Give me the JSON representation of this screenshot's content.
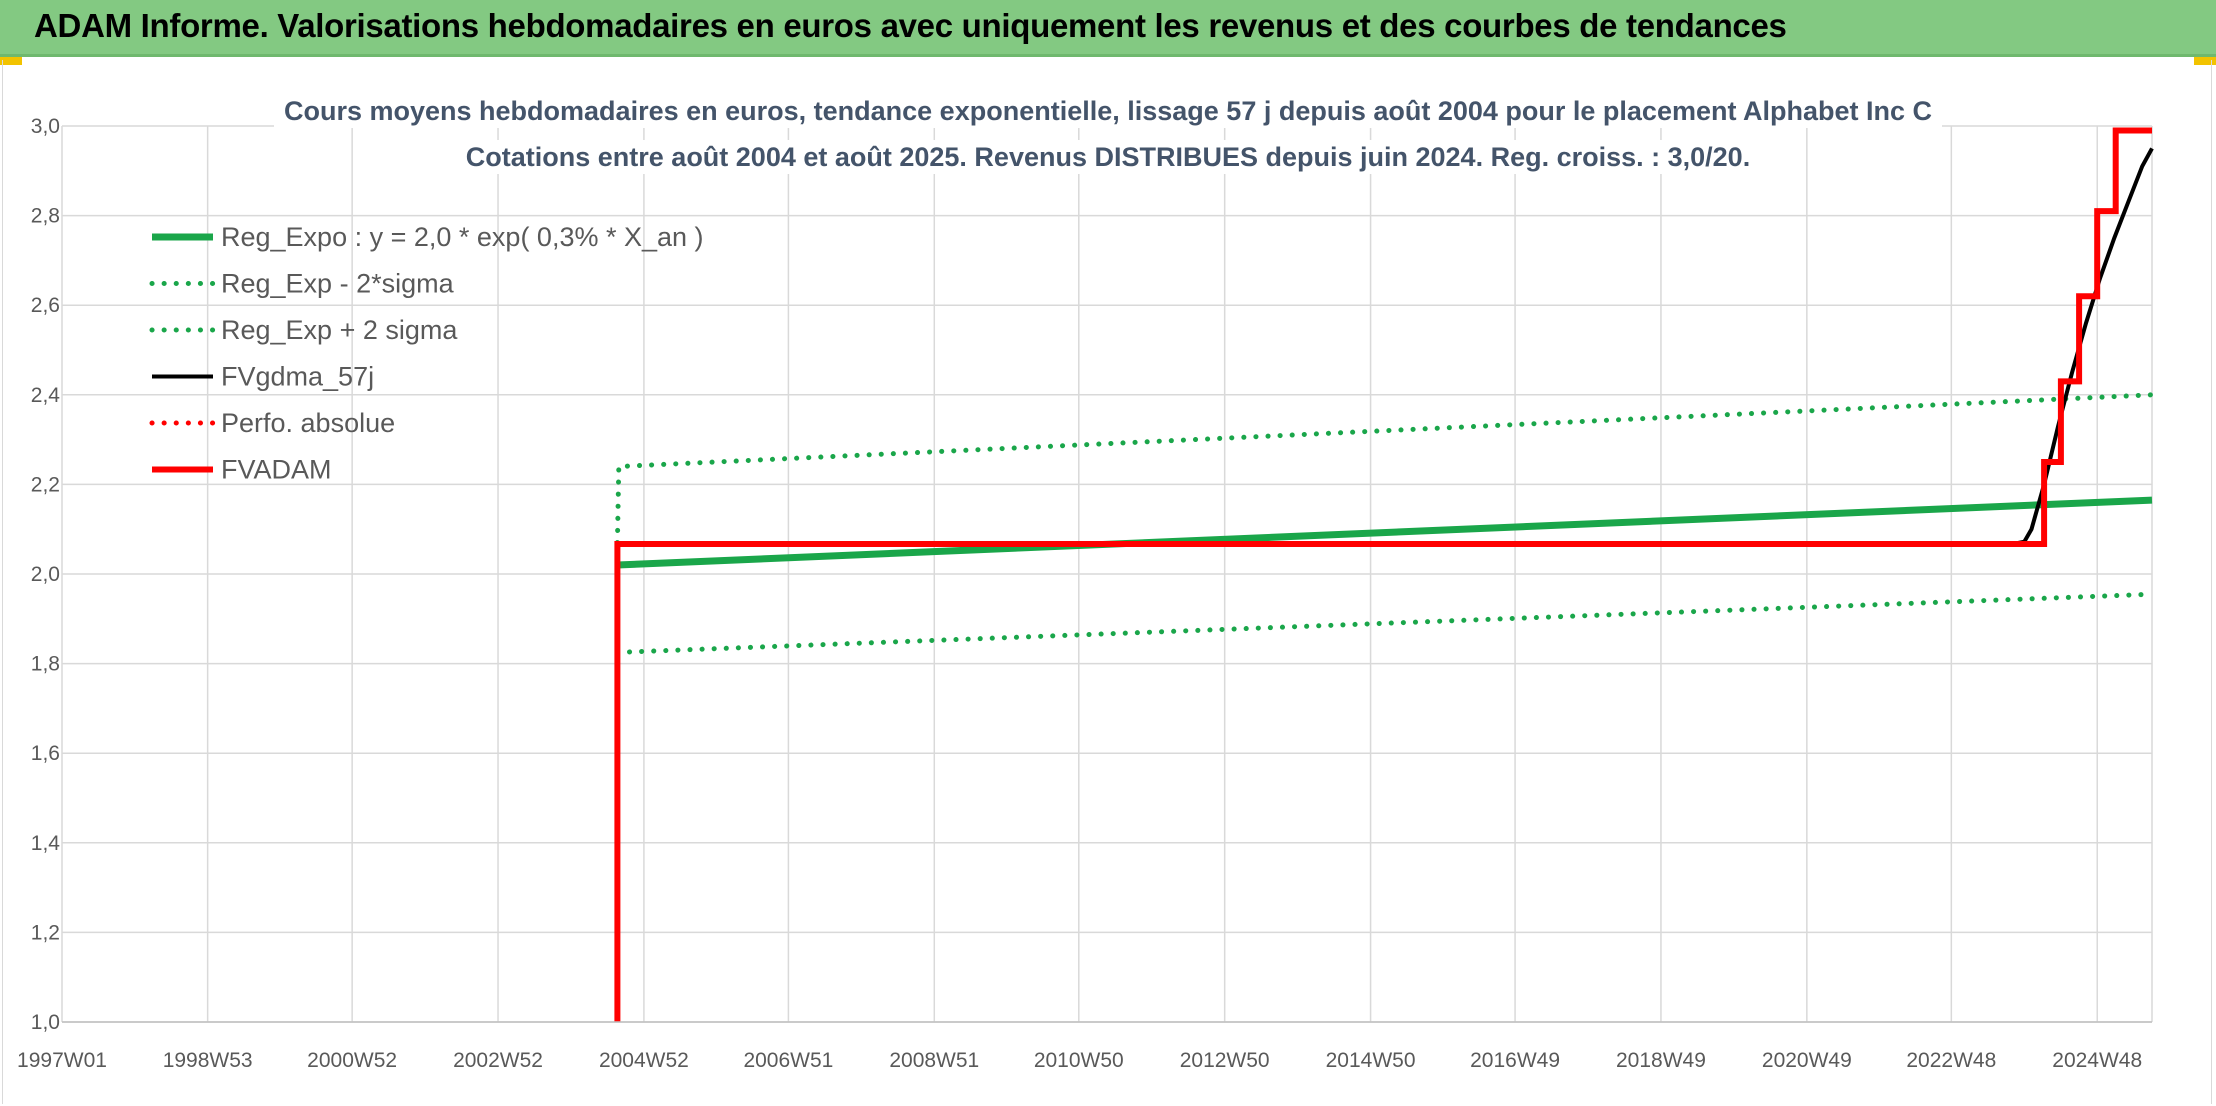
{
  "banner": {
    "title": "ADAM Informe. Valorisations hebdomadaires en euros avec uniquement les revenus et des courbes de tendances"
  },
  "colors": {
    "banner": "#83c982",
    "trend_green": "#1aa64a",
    "black": "#000000",
    "red": "#ff0000",
    "grid": "#d9d9d9"
  },
  "chart_data": {
    "type": "line",
    "title_line1": "Cours moyens hebdomadaires en euros, tendance exponentielle, lissage 57 j depuis août 2004 pour le placement Alphabet Inc C",
    "title_line2": "Cotations entre août 2004 et août 2025. Revenus DISTRIBUES depuis juin 2024. Reg. croiss. : 3,0/20.",
    "x_axis": {
      "type": "weekly",
      "ticks": [
        "1997W01",
        "1998W53",
        "2000W52",
        "2002W52",
        "2004W52",
        "2006W51",
        "2008W51",
        "2010W50",
        "2012W50",
        "2014W50",
        "2016W49",
        "2018W49",
        "2020W49",
        "2022W48",
        "2024W48"
      ],
      "range": [
        "1997W01",
        "2025W35"
      ]
    },
    "y_axis": {
      "ticks": [
        "1,0",
        "1,2",
        "1,4",
        "1,6",
        "1,8",
        "2,0",
        "2,2",
        "2,4",
        "2,6",
        "2,8",
        "3,0"
      ],
      "range": [
        1.0,
        3.0
      ]
    },
    "grid": true,
    "legend_position": "top-left",
    "series": [
      {
        "name": "Reg_Expo : y = 2,0 * exp( 0,3% *  X_an )",
        "color": "#1aa64a",
        "style": "solid",
        "x": [
          "2004W33",
          "2025W35"
        ],
        "y": [
          2.02,
          2.165
        ]
      },
      {
        "name": "Reg_Exp - 2*sigma",
        "color": "#1aa64a",
        "style": "dotted",
        "x": [
          "2004W33",
          "2025W35"
        ],
        "y": [
          1.825,
          1.955
        ]
      },
      {
        "name": "Reg_Exp + 2 sigma",
        "color": "#1aa64a",
        "style": "dotted",
        "x": [
          "2004W33",
          "2004W34",
          "2025W35"
        ],
        "y": [
          2.07,
          2.24,
          2.4
        ]
      },
      {
        "name": "FVgdma_57j",
        "color": "#000000",
        "style": "solid",
        "x": [
          "2004W33",
          "2023W40",
          "2023W48",
          "2024W01",
          "2024W10",
          "2024W20",
          "2024W30",
          "2024W40",
          "2024W50",
          "2025W08",
          "2025W18",
          "2025W28",
          "2025W35"
        ],
        "y": [
          2.067,
          2.067,
          2.072,
          2.1,
          2.2,
          2.33,
          2.45,
          2.56,
          2.66,
          2.75,
          2.83,
          2.91,
          2.95
        ]
      },
      {
        "name": "Perfo. absolue",
        "color": "#ff0000",
        "style": "dotted",
        "x": [],
        "y": []
      },
      {
        "name": "FVADAM",
        "color": "#ff0000",
        "style": "solid",
        "x": [
          "2004W33",
          "2004W33",
          "2024W10",
          "2024W10",
          "2024W22",
          "2024W22",
          "2024W35",
          "2024W35",
          "2024W48",
          "2024W48",
          "2025W09",
          "2025W09",
          "2025W22",
          "2025W22",
          "2025W35"
        ],
        "y": [
          1.0,
          2.067,
          2.067,
          2.25,
          2.25,
          2.43,
          2.43,
          2.62,
          2.62,
          2.81,
          2.81,
          2.99,
          2.99,
          2.99,
          2.99
        ]
      }
    ]
  }
}
